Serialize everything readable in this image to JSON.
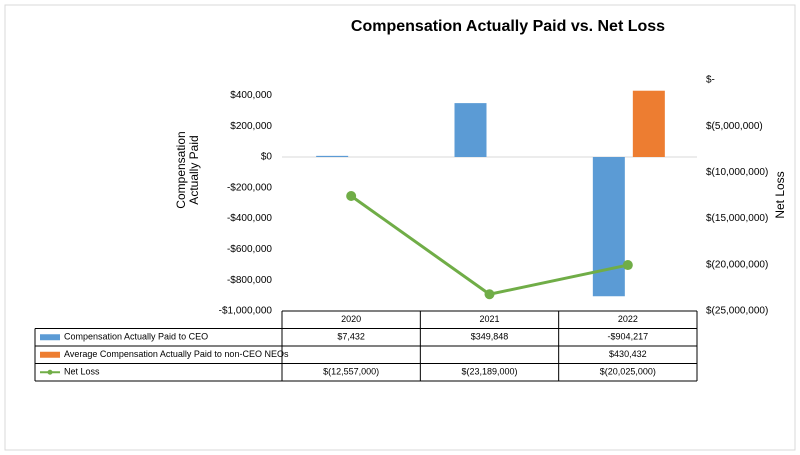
{
  "chart_data": {
    "type": "bar",
    "title": "Compensation Actually Paid vs. Net Loss",
    "y_label": "Compensation Actually Paid",
    "y2_label": "Net Loss",
    "categories": [
      "2020",
      "2021",
      "2022"
    ],
    "series": [
      {
        "name": "Compensation Actually Paid to CEO",
        "type": "bar",
        "color": "#5b9bd5",
        "values": [
          7432,
          349848,
          -904217
        ],
        "value_labels": [
          "$7,432",
          "$349,848",
          "-$904,217"
        ]
      },
      {
        "name": "Average Compensation Actually Paid to non-CEO NEOs",
        "type": "bar",
        "color": "#ed7d31",
        "values": [
          null,
          null,
          430432
        ],
        "value_labels": [
          null,
          null,
          "$430,432"
        ]
      },
      {
        "name": "Net Loss",
        "type": "line",
        "axis": "y2",
        "color": "#70ad47",
        "values": [
          -12557000,
          -23189000,
          -20025000
        ],
        "value_labels": [
          "$(12,557,000)",
          "$(23,189,000)",
          "$(20,025,000)"
        ]
      }
    ],
    "ylim": [
      -1000000,
      500000
    ],
    "yticks": [
      {
        "value": -1000000,
        "label": "-$1,000,000"
      },
      {
        "value": -800000,
        "label": "-$800,000"
      },
      {
        "value": -600000,
        "label": "-$600,000"
      },
      {
        "value": -400000,
        "label": "-$400,000"
      },
      {
        "value": -200000,
        "label": "-$200,000"
      },
      {
        "value": 0,
        "label": "$0"
      },
      {
        "value": 200000,
        "label": "$200,000"
      },
      {
        "value": 400000,
        "label": "$400,000"
      }
    ],
    "y2lim": [
      -25000000,
      0
    ],
    "y2ticks": [
      {
        "value": -25000000,
        "label": "$(25,000,000)"
      },
      {
        "value": -20000000,
        "label": "$(20,000,000)"
      },
      {
        "value": -15000000,
        "label": "$(15,000,000)"
      },
      {
        "value": -10000000,
        "label": "$(10,000,000)"
      },
      {
        "value": -5000000,
        "label": "$(5,000,000)"
      },
      {
        "value": 0,
        "label": "$-"
      }
    ],
    "grid": false
  }
}
